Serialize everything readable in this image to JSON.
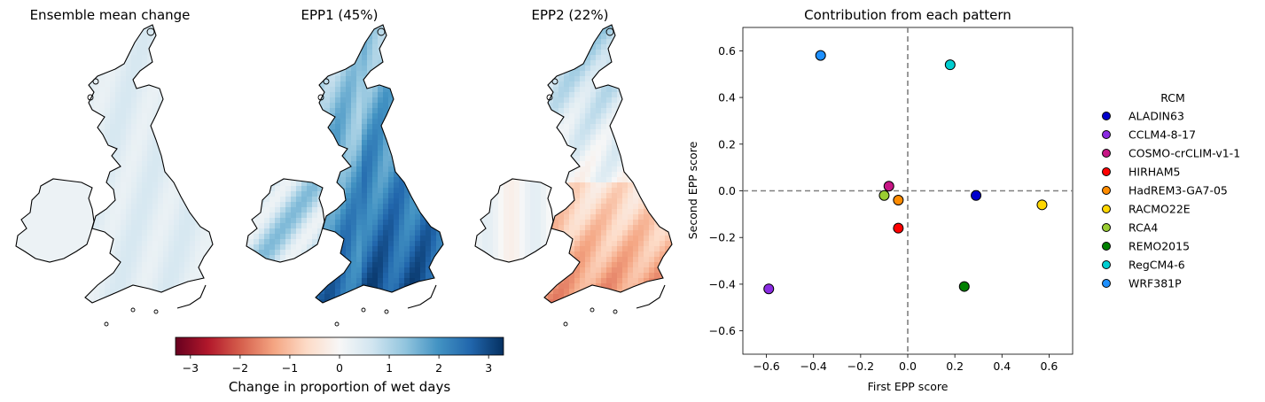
{
  "maps": {
    "titles": [
      "Ensemble mean change",
      "EPP1 (45%)",
      "EPP2 (22%)"
    ],
    "colorbar": {
      "label": "Change in proportion of wet days",
      "range": [
        -3.3,
        3.3
      ],
      "ticks": [
        -3,
        -2,
        -1,
        0,
        1,
        2,
        3
      ],
      "tick_labels": [
        "−3",
        "−2",
        "−1",
        "0",
        "1",
        "2",
        "3"
      ],
      "colormap": [
        "#67001f",
        "#b2182b",
        "#d6604d",
        "#f4a582",
        "#fddbc7",
        "#f7f7f7",
        "#d1e5f0",
        "#92c5de",
        "#4393c3",
        "#2166ac",
        "#053061"
      ]
    }
  },
  "chart_data": {
    "type": "scatter",
    "title": "Contribution from each pattern",
    "xlabel": "First EPP score",
    "ylabel": "Second EPP score",
    "xlim": [
      -0.7,
      0.7
    ],
    "ylim": [
      -0.7,
      0.7
    ],
    "xticks": [
      -0.6,
      -0.4,
      -0.2,
      0.0,
      0.2,
      0.4,
      0.6
    ],
    "yticks": [
      -0.6,
      -0.4,
      -0.2,
      0.0,
      0.2,
      0.4,
      0.6
    ],
    "xtick_labels": [
      "−0.6",
      "−0.4",
      "−0.2",
      "0.0",
      "0.2",
      "0.4",
      "0.6"
    ],
    "ytick_labels": [
      "−0.6",
      "−0.4",
      "−0.2",
      "0.0",
      "0.2",
      "0.4",
      "0.6"
    ],
    "reference_lines": {
      "x": 0,
      "y": 0,
      "style": "dashed"
    },
    "grid": false,
    "legend": {
      "title": "RCM",
      "placement": "right-outside"
    },
    "points": [
      {
        "name": "ALADIN63",
        "x": 0.29,
        "y": -0.02,
        "color": "#0000cd"
      },
      {
        "name": "CCLM4-8-17",
        "x": -0.59,
        "y": -0.42,
        "color": "#8a2be2"
      },
      {
        "name": "COSMO-crCLIM-v1-1",
        "x": -0.08,
        "y": 0.02,
        "color": "#c71585"
      },
      {
        "name": "HIRHAM5",
        "x": -0.04,
        "y": -0.16,
        "color": "#ff0000"
      },
      {
        "name": "HadREM3-GA7-05",
        "x": -0.04,
        "y": -0.04,
        "color": "#ff8c00"
      },
      {
        "name": "RACMO22E",
        "x": 0.57,
        "y": -0.06,
        "color": "#ffd700"
      },
      {
        "name": "RCA4",
        "x": -0.1,
        "y": -0.02,
        "color": "#9acd32"
      },
      {
        "name": "REMO2015",
        "x": 0.24,
        "y": -0.41,
        "color": "#008000"
      },
      {
        "name": "RegCM4-6",
        "x": 0.18,
        "y": 0.54,
        "color": "#00ced1"
      },
      {
        "name": "WRF381P",
        "x": -0.37,
        "y": 0.58,
        "color": "#1e90ff"
      }
    ]
  }
}
